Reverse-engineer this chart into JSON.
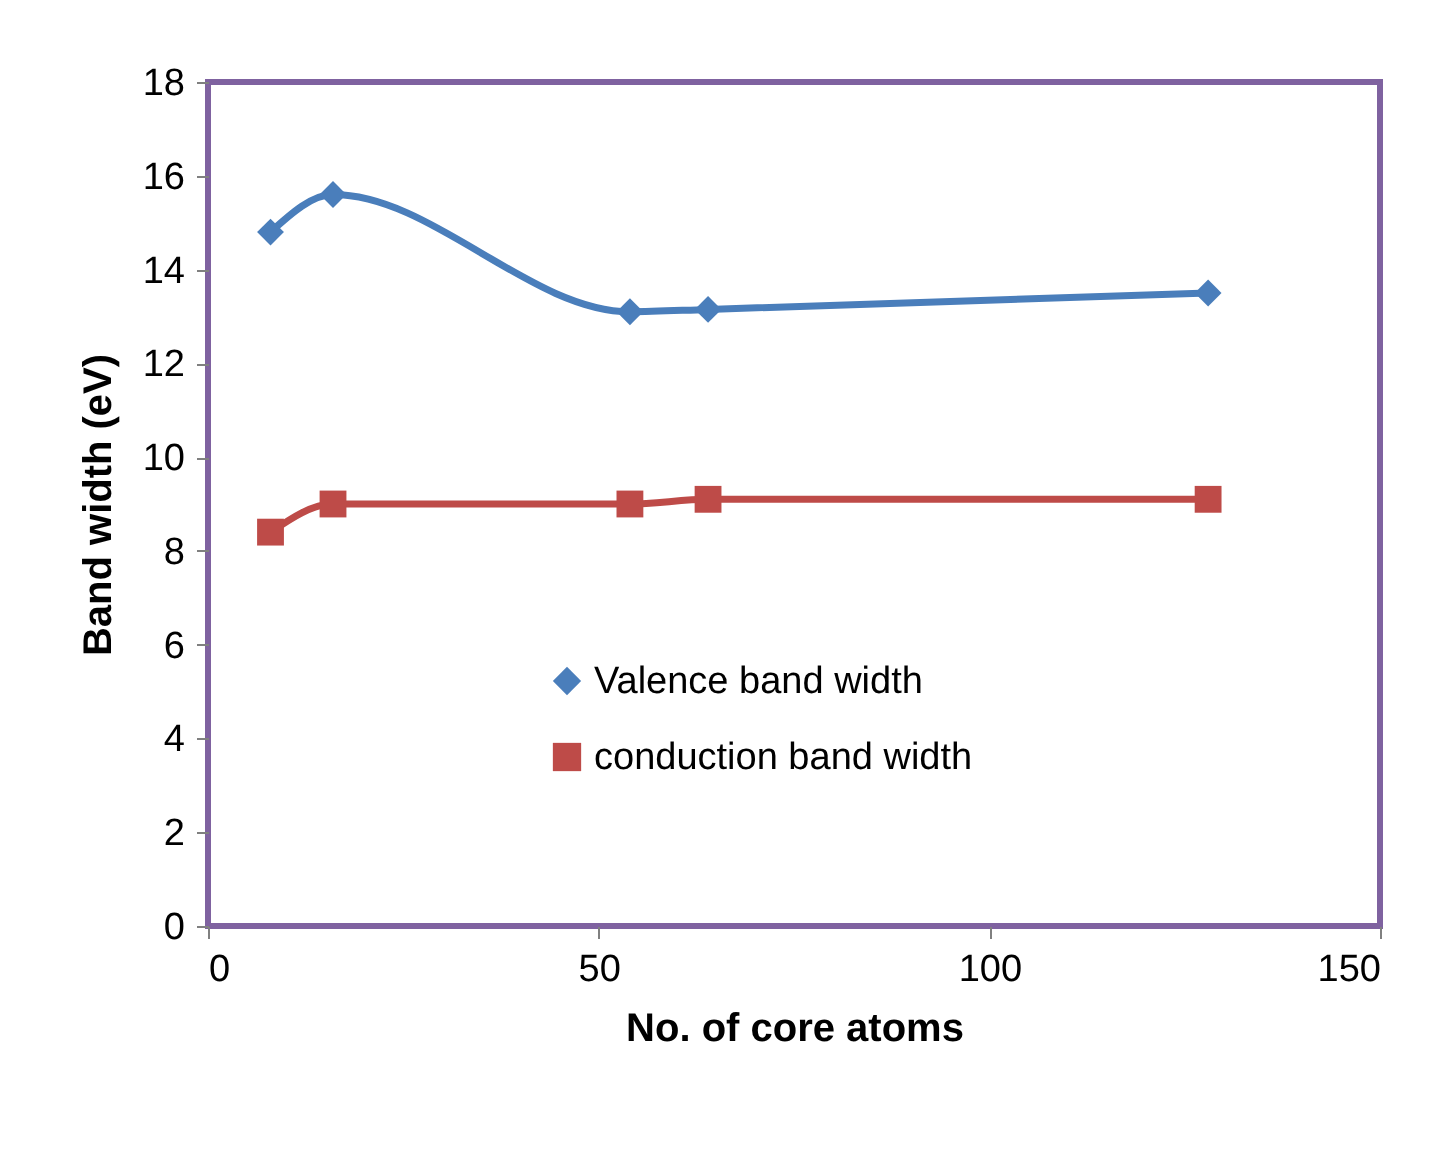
{
  "chart_data": {
    "type": "line",
    "xlabel": "No. of core atoms",
    "ylabel": "Band width (eV)",
    "x": [
      8,
      16,
      54,
      64,
      128
    ],
    "series": [
      {
        "name": "Valence band width",
        "color": "#4a7ebb",
        "marker": "diamond",
        "values": [
          14.8,
          15.6,
          13.1,
          13.15,
          13.5
        ]
      },
      {
        "name": "conduction band width",
        "color": "#be4b48",
        "marker": "square",
        "values": [
          8.4,
          9.0,
          9.0,
          9.1,
          9.1
        ]
      }
    ],
    "xlim": [
      0,
      150
    ],
    "xticks": [
      0,
      50,
      100,
      150
    ],
    "ylim": [
      0,
      18
    ],
    "yticks": [
      0,
      2,
      4,
      6,
      8,
      10,
      12,
      14,
      16,
      18
    ],
    "grid": false,
    "legend": "bottom",
    "line_style": "solid"
  }
}
